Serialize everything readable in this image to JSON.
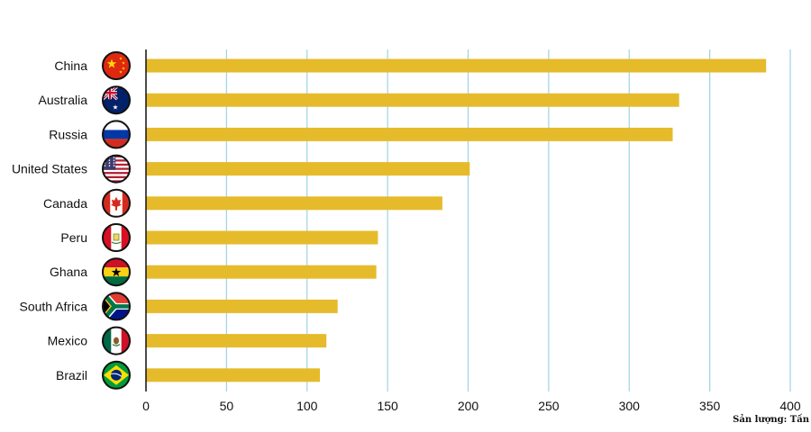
{
  "chart_data": {
    "type": "bar",
    "orientation": "horizontal",
    "categories": [
      "China",
      "Australia",
      "Russia",
      "United States",
      "Canada",
      "Peru",
      "Ghana",
      "South Africa",
      "Mexico",
      "Brazil"
    ],
    "values": [
      385,
      331,
      327,
      201,
      184,
      144,
      143,
      119,
      112,
      108
    ],
    "flag_icons": [
      "china-flag-icon",
      "australia-flag-icon",
      "russia-flag-icon",
      "united-states-flag-icon",
      "canada-flag-icon",
      "peru-flag-icon",
      "ghana-flag-icon",
      "south-africa-flag-icon",
      "mexico-flag-icon",
      "brazil-flag-icon"
    ],
    "xticks": [
      0,
      50,
      100,
      150,
      200,
      250,
      300,
      350,
      400
    ],
    "xlim": [
      0,
      400
    ],
    "grid": "vertical",
    "bar_color": "#e6bb2b",
    "grid_color": "#9fd3e3",
    "unit_note": "Sản lượng: Tấn"
  }
}
